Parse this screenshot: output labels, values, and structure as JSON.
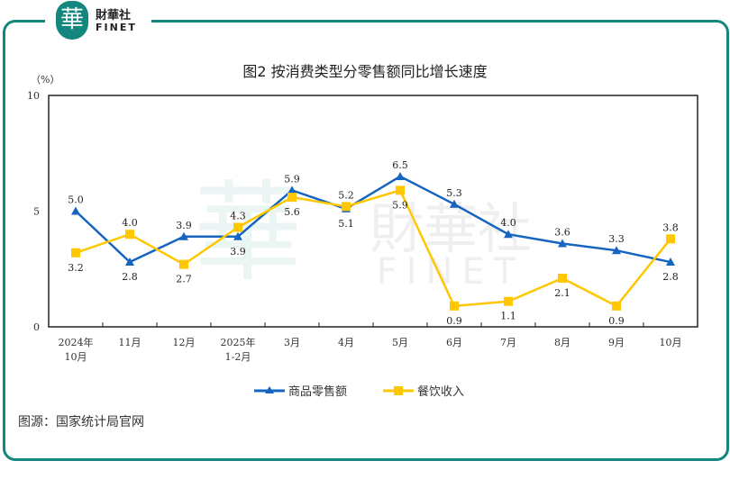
{
  "brand": {
    "cn": "財華社",
    "en": "FINET",
    "logo_char": "華"
  },
  "source": "图源：国家统计局官网",
  "colors": {
    "frame": "#13877d",
    "series1": "#1565c0",
    "series2": "#ffc700"
  },
  "chart_data": {
    "type": "line",
    "title": "图2  按消费类型分零售额同比增长速度",
    "ylabel": "（%）",
    "ylim": [
      0,
      10
    ],
    "yticks": [
      0,
      5,
      10
    ],
    "grid": false,
    "legend": "bottom",
    "categories": [
      [
        "2024年",
        "10月"
      ],
      [
        "11月"
      ],
      [
        "12月"
      ],
      [
        "2025年",
        "1-2月"
      ],
      [
        "3月"
      ],
      [
        "4月"
      ],
      [
        "5月"
      ],
      [
        "6月"
      ],
      [
        "7月"
      ],
      [
        "8月"
      ],
      [
        "9月"
      ],
      [
        "10月"
      ]
    ],
    "series": [
      {
        "name": "商品零售额",
        "color": "#1565c0",
        "marker": "triangle",
        "values": [
          5.0,
          2.8,
          3.9,
          3.9,
          5.9,
          5.1,
          6.5,
          5.3,
          4.0,
          3.6,
          3.3,
          2.8
        ],
        "labels": [
          "5.0",
          "2.8",
          "3.9",
          "3.9",
          "5.9",
          "5.1",
          "6.5",
          "5.3",
          "4.0",
          "3.6",
          "3.3",
          "2.8"
        ]
      },
      {
        "name": "餐饮收入",
        "color": "#ffc700",
        "marker": "square",
        "values": [
          3.2,
          4.0,
          2.7,
          4.3,
          5.6,
          5.2,
          5.9,
          0.9,
          1.1,
          2.1,
          0.9,
          3.8
        ],
        "labels": [
          "3.2",
          "4.0",
          "2.7",
          "4.3",
          "5.6",
          "5.2",
          "5.9",
          "0.9",
          "1.1",
          "2.1",
          "0.9",
          "3.8"
        ]
      }
    ]
  }
}
